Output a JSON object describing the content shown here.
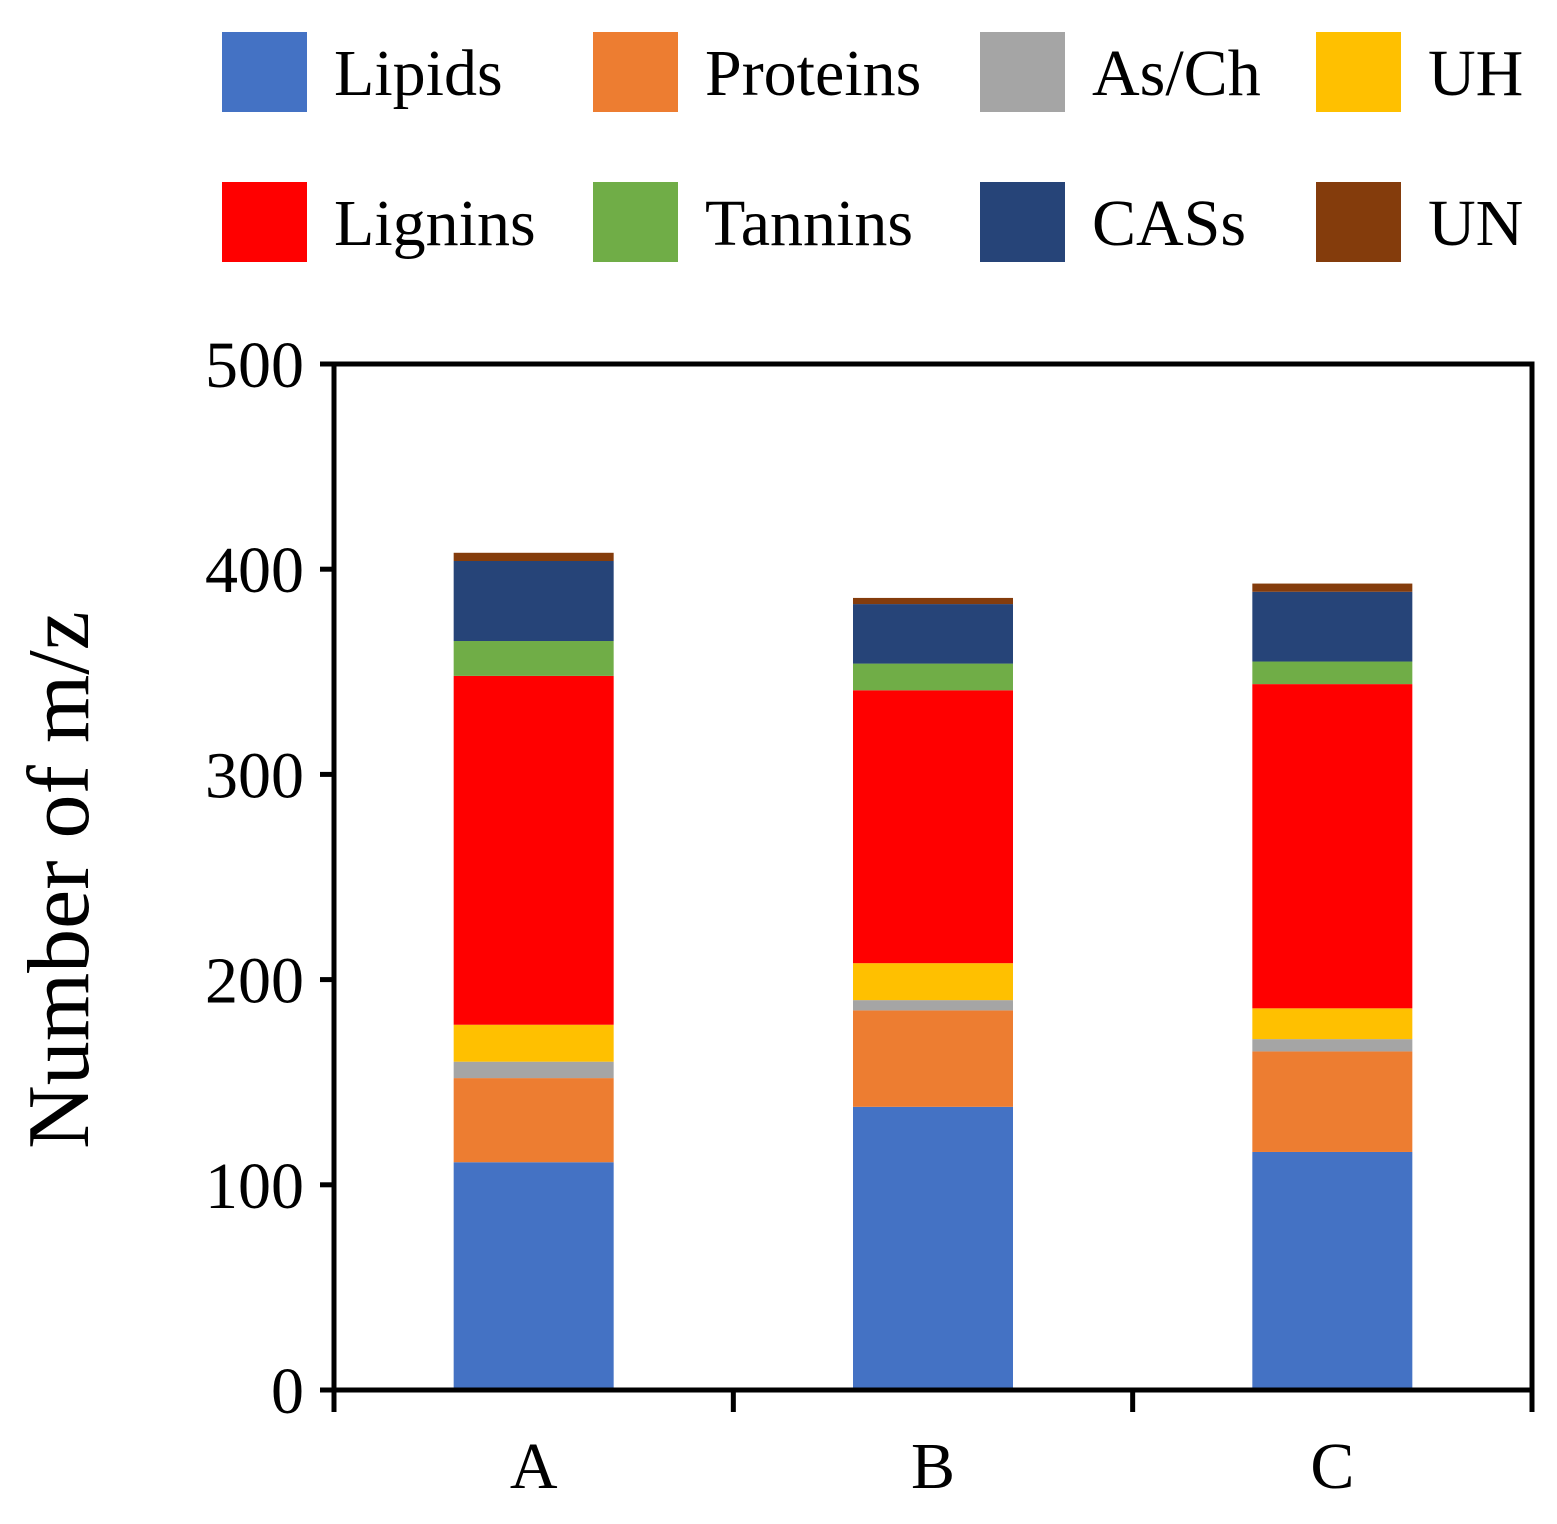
{
  "chart_data": {
    "type": "bar",
    "stacked": true,
    "title": "",
    "xlabel": "",
    "ylabel": "Number of m/z",
    "ylim": [
      0,
      500
    ],
    "yticks": [
      0,
      100,
      200,
      300,
      400,
      500
    ],
    "grid": false,
    "legend_position": "top",
    "categories": [
      "A",
      "B",
      "C"
    ],
    "series": [
      {
        "name": "Lipids",
        "color": "#4472C4",
        "values": [
          111,
          138,
          116
        ]
      },
      {
        "name": "Proteins",
        "color": "#ED7D31",
        "values": [
          41,
          47,
          49
        ]
      },
      {
        "name": "As/Ch",
        "color": "#A5A5A5",
        "values": [
          8,
          5,
          6
        ]
      },
      {
        "name": "UH",
        "color": "#FFC000",
        "values": [
          18,
          18,
          15
        ]
      },
      {
        "name": "Lignins",
        "color": "#FF0000",
        "values": [
          170,
          133,
          158
        ]
      },
      {
        "name": "Tannins",
        "color": "#70AD47",
        "values": [
          17,
          13,
          11
        ]
      },
      {
        "name": "CASs",
        "color": "#264478",
        "values": [
          39,
          29,
          34
        ]
      },
      {
        "name": "UN",
        "color": "#843C0C",
        "values": [
          4,
          3,
          4
        ]
      }
    ]
  }
}
